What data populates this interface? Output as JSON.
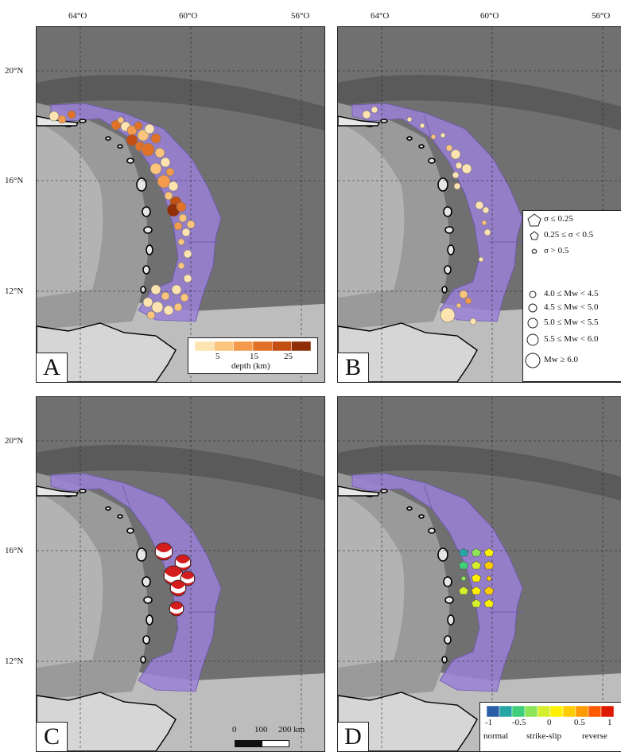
{
  "axes": {
    "lon_labels": [
      "64°O",
      "60°O",
      "56°O"
    ],
    "lat_labels": [
      "20°N",
      "16°N",
      "12°N"
    ]
  },
  "panels": [
    {
      "letter": "A"
    },
    {
      "letter": "B"
    },
    {
      "letter": "C"
    },
    {
      "letter": "D"
    }
  ],
  "legend_depth": {
    "ticks": [
      "5",
      "15",
      "25"
    ],
    "title": "depth (km)",
    "colors": [
      "#fde3b0",
      "#fbc47d",
      "#f39a4c",
      "#e07227",
      "#c24e12",
      "#8f2e07"
    ]
  },
  "legend_b": {
    "sigma": [
      "σ ≤ 0.25",
      "0.25  ≤ σ <  0.5",
      "σ > 0.5"
    ],
    "mw": [
      "4.0 ≤ Mw < 4.5",
      "4.5 ≤ Mw < 5.0",
      "5.0 ≤ Mw < 5.5",
      "5.5 ≤ Mw < 6.0",
      "Mw ≥ 6.0"
    ]
  },
  "legend_d": {
    "ticks": [
      "-1",
      "-0.5",
      "0",
      "0.5",
      "1"
    ],
    "captions": [
      "normal",
      "strike-slip",
      "reverse"
    ],
    "colors": [
      "#2a5fa8",
      "#27a4a4",
      "#3fcf7a",
      "#8ee55a",
      "#d6ef2c",
      "#fff000",
      "#ffcc00",
      "#ff9a00",
      "#ff5a00",
      "#e01a00"
    ]
  },
  "scale_bar": {
    "labels": [
      "0",
      "100",
      "200 km"
    ]
  },
  "colors": {
    "zone": "#9a80d6",
    "zone_edge": "#6b56b0",
    "sea": "#707070",
    "land": "#cfcfcf",
    "beachball": "#d41e1e"
  }
}
